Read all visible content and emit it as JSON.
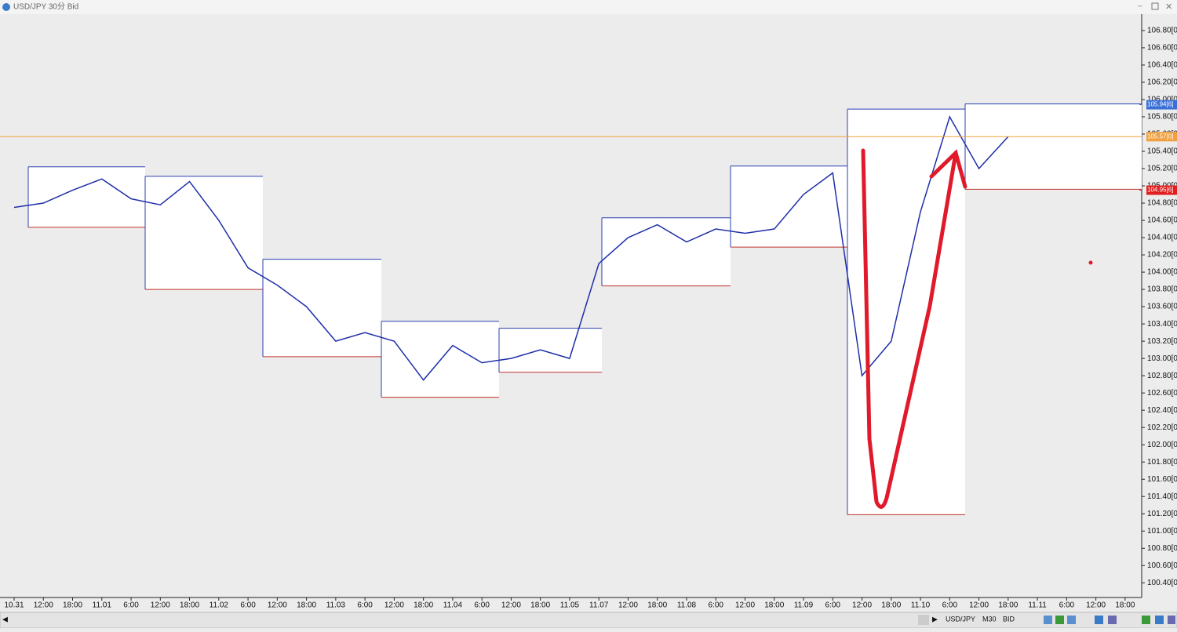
{
  "window": {
    "title": "USD/JPY 30分 Bid"
  },
  "toolbar": {
    "symbol": "USD/JPY",
    "period": "M30",
    "side": "BID"
  },
  "chart_data": {
    "type": "line",
    "categories": [
      "10.31",
      "12:00",
      "18:00",
      "11.01",
      "6:00",
      "12:00",
      "18:00",
      "11.02",
      "6:00",
      "12:00",
      "18:00",
      "11.03",
      "6:00",
      "12:00",
      "18:00",
      "11.04",
      "6:00",
      "12:00",
      "18:00",
      "11.05",
      "11.07",
      "12:00",
      "18:00",
      "11.08",
      "6:00",
      "12:00",
      "18:00",
      "11.09",
      "6:00",
      "12:00",
      "18:00",
      "11.10",
      "6:00",
      "12:00",
      "18:00",
      "11.11",
      "6:00",
      "12:00",
      "18:00"
    ],
    "values": [
      104.75,
      104.8,
      104.95,
      105.08,
      104.85,
      104.78,
      105.05,
      104.6,
      104.05,
      103.85,
      103.6,
      103.2,
      103.3,
      103.2,
      102.75,
      103.15,
      102.95,
      103.0,
      103.1,
      103.0,
      104.1,
      104.4,
      104.55,
      104.35,
      104.5,
      104.45,
      104.5,
      104.9,
      105.15,
      102.8,
      103.2,
      104.7,
      105.8,
      105.2,
      105.57,
      null,
      null,
      null,
      null
    ],
    "color": "#1f2fa8",
    "day_ranges": [
      {
        "high": 105.22,
        "low": 104.52
      },
      {
        "high": 105.11,
        "low": 103.8
      },
      {
        "high": 104.15,
        "low": 103.02
      },
      {
        "high": 103.43,
        "low": 102.55
      },
      {
        "high": 103.35,
        "low": 102.84
      },
      {
        "high": 104.63,
        "low": 103.84
      },
      {
        "high": 105.23,
        "low": 104.29
      },
      {
        "high": 105.89,
        "low": 101.19
      },
      {
        "high": 105.95,
        "low": 104.96
      }
    ],
    "levels": [
      {
        "value": 105.94,
        "label": "105.94[6]",
        "color": "#3b6fd8"
      },
      {
        "value": 105.57,
        "label": "105.57[0]",
        "color": "#f0a040"
      },
      {
        "value": 104.95,
        "label": "104.95[6]",
        "color": "#e02020"
      }
    ],
    "ylim": [
      100.23,
      106.99
    ],
    "yticks": [
      {
        "value": 100.4,
        "label": "100.40[0"
      },
      {
        "value": 100.6,
        "label": "100.60[0"
      },
      {
        "value": 100.8,
        "label": "100.80[0"
      },
      {
        "value": 101,
        "label": "101.00[0"
      },
      {
        "value": 101.2,
        "label": "101.20[0"
      },
      {
        "value": 101.4,
        "label": "101.40[0"
      },
      {
        "value": 101.6,
        "label": "101.60[0"
      },
      {
        "value": 101.8,
        "label": "101.80[0"
      },
      {
        "value": 102,
        "label": "102.00[0"
      },
      {
        "value": 102.2,
        "label": "102.20[0"
      },
      {
        "value": 102.4,
        "label": "102.40[0"
      },
      {
        "value": 102.6,
        "label": "102.60[0"
      },
      {
        "value": 102.8,
        "label": "102.80[0"
      },
      {
        "value": 103,
        "label": "103.00[0"
      },
      {
        "value": 103.2,
        "label": "103.20[0"
      },
      {
        "value": 103.4,
        "label": "103.40[0"
      },
      {
        "value": 103.6,
        "label": "103.60[0"
      },
      {
        "value": 103.8,
        "label": "103.80[0"
      },
      {
        "value": 104,
        "label": "104.00[0"
      },
      {
        "value": 104.2,
        "label": "104.20[0"
      },
      {
        "value": 104.4,
        "label": "104.40[0"
      },
      {
        "value": 104.6,
        "label": "104.60[0"
      },
      {
        "value": 104.8,
        "label": "104.80[0"
      },
      {
        "value": 105,
        "label": "105.00[0"
      },
      {
        "value": 105.2,
        "label": "105.20[0"
      },
      {
        "value": 105.4,
        "label": "105.40[0"
      },
      {
        "value": 105.6,
        "label": "105.60[0"
      },
      {
        "value": 105.8,
        "label": "105.80[0"
      },
      {
        "value": 106,
        "label": "106.00[0"
      },
      {
        "value": 106.2,
        "label": "106.20[0"
      },
      {
        "value": 106.4,
        "label": "106.40[0"
      },
      {
        "value": 106.6,
        "label": "106.60[0"
      },
      {
        "value": 106.8,
        "label": "106.80[0"
      }
    ]
  }
}
